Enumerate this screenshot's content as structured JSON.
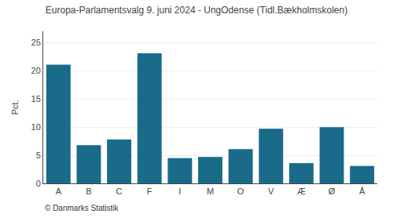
{
  "chart_data": {
    "type": "bar",
    "title": "Europa-Parlamentsvalg 9. juni 2024 - UngOdense (Tidl.Bækholmskolen)",
    "categories": [
      "A",
      "B",
      "C",
      "F",
      "I",
      "M",
      "O",
      "V",
      "Æ",
      "Ø",
      "Å"
    ],
    "values": [
      21.1,
      6.8,
      7.8,
      23.1,
      4.5,
      4.7,
      6.1,
      9.7,
      3.6,
      10.0,
      3.1
    ],
    "color": "#1a6b8a",
    "ylabel": "Pct.",
    "annotations": [
      "© Danmarks Statistik"
    ],
    "ylim": [
      0,
      27
    ],
    "yticks": [
      0,
      5,
      10,
      15,
      20,
      25
    ],
    "grid": true
  }
}
